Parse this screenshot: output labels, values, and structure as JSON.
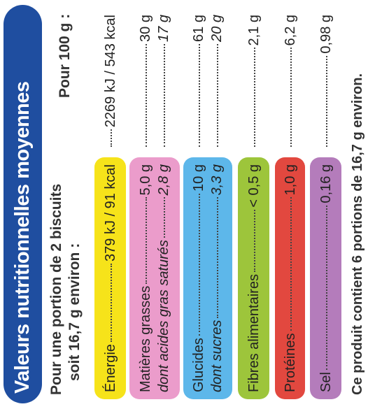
{
  "title": "Valeurs nutritionnelles moyennes",
  "header": {
    "portion": "Pour une portion de 2 biscuits",
    "portion_note": "soit 16,7 g environ :",
    "per100": "Pour 100 g :"
  },
  "rows": [
    {
      "label": "Énergie",
      "portion": "379 kJ / 91 kcal",
      "per100": "2269 kJ / 543 kcal"
    },
    {
      "label": "Matières grasses",
      "portion": "5,0 g",
      "per100": "30 g",
      "sub_label": "dont acides gras saturés",
      "sub_portion": "2,8 g",
      "sub_per100": "17 g"
    },
    {
      "label": "Glucides",
      "portion": "10 g",
      "per100": "61 g",
      "sub_label": "dont sucres",
      "sub_portion": "3,3 g",
      "sub_per100": "20 g"
    },
    {
      "label": "Fibres alimentaires",
      "portion": "< 0,5 g",
      "per100": "2,1 g"
    },
    {
      "label": "Protéines",
      "portion": "1,0 g",
      "per100": "6,2 g"
    },
    {
      "label": "Sel",
      "portion": "0,16 g",
      "per100": "0,98 g"
    }
  ],
  "footer": "Ce produit contient 6 portions de 16,7 g environ."
}
